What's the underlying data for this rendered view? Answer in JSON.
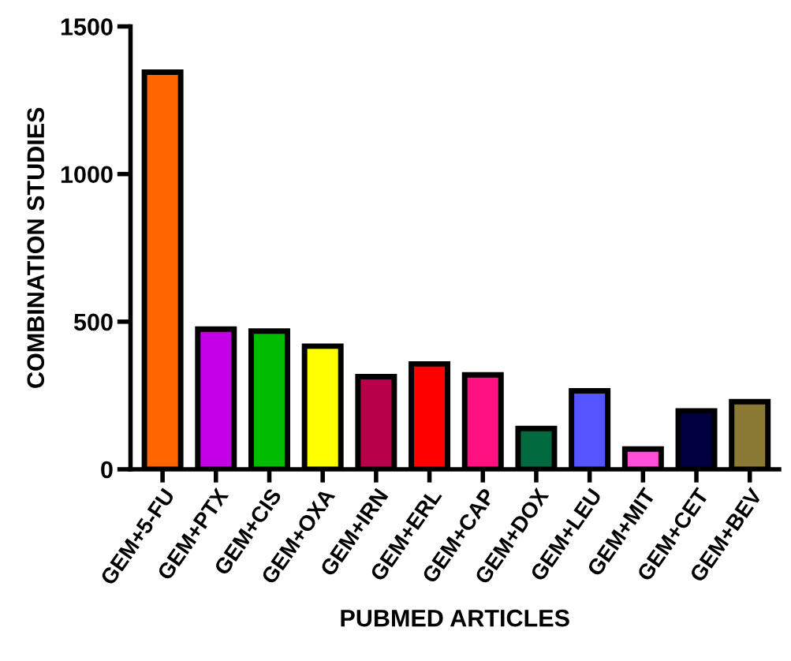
{
  "chart_data": {
    "type": "bar",
    "xlabel": "PUBMED ARTICLES",
    "ylabel": "COMBINATION STUDIES",
    "categories": [
      "GEM+5-FU",
      "GEM+PTX",
      "GEM+CIS",
      "GEM+OXA",
      "GEM+IRN",
      "GEM+ERL",
      "GEM+CAP",
      "GEM+DOX",
      "GEM+LEU",
      "GEM+MIT",
      "GEM+CET",
      "GEM+BEV"
    ],
    "values": [
      1345,
      475,
      468,
      417,
      314,
      357,
      320,
      138,
      266,
      69,
      198,
      229
    ],
    "colors": [
      "#ff6600",
      "#c300e6",
      "#00bb00",
      "#ffff00",
      "#b8004a",
      "#ff0000",
      "#ff1080",
      "#006a3e",
      "#5555ff",
      "#ff4fd8",
      "#000040",
      "#8a7a35"
    ],
    "ylim": [
      0,
      1500
    ],
    "yticks": [
      0,
      500,
      1000,
      1500
    ],
    "grid": false
  }
}
